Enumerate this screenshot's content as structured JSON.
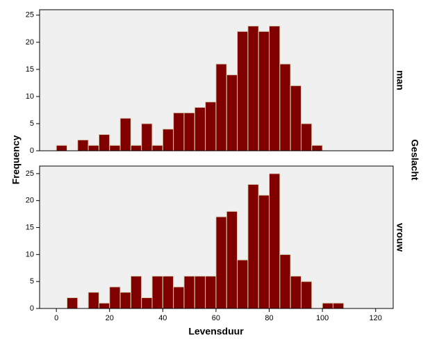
{
  "chart_data": [
    {
      "type": "histogram",
      "panel": "man",
      "ylabel": "Frequency",
      "facet_title": "Geslacht",
      "bins": [
        0,
        4,
        8,
        12,
        16,
        20,
        24,
        28,
        32,
        36,
        40,
        44,
        48,
        52,
        56,
        60,
        64,
        68,
        72,
        76,
        80,
        84,
        88,
        92,
        96,
        100,
        104,
        108
      ],
      "values": [
        1,
        0,
        2,
        1,
        3,
        1,
        6,
        1,
        5,
        1,
        4,
        7,
        7,
        8,
        9,
        16,
        14,
        22,
        23,
        22,
        23,
        16,
        12,
        5,
        1,
        0,
        0
      ],
      "color": "#800000",
      "edgecolor": "#d9d2b4",
      "xlim": [
        -6.3,
        126.6
      ],
      "ylim": [
        0,
        26
      ],
      "yticks": [
        0,
        5,
        10,
        15,
        20,
        25
      ]
    },
    {
      "type": "histogram",
      "panel": "vrouw",
      "xlabel": "Levensduur",
      "bins": [
        0,
        4,
        8,
        12,
        16,
        20,
        24,
        28,
        32,
        36,
        40,
        44,
        48,
        52,
        56,
        60,
        64,
        68,
        72,
        76,
        80,
        84,
        88,
        92,
        96,
        100,
        104,
        108
      ],
      "values": [
        0,
        2,
        0,
        3,
        1,
        4,
        3,
        6,
        2,
        6,
        6,
        4,
        6,
        6,
        6,
        17,
        18,
        9,
        23,
        21,
        25,
        10,
        6,
        5,
        0,
        1,
        1
      ],
      "color": "#800000",
      "edgecolor": "#d9d2b4",
      "xlim": [
        -6.3,
        126.6
      ],
      "ylim": [
        0,
        26.4
      ],
      "yticks": [
        0,
        5,
        10,
        15,
        20,
        25
      ],
      "xticks": [
        0,
        20,
        40,
        60,
        80,
        100,
        120
      ]
    }
  ]
}
